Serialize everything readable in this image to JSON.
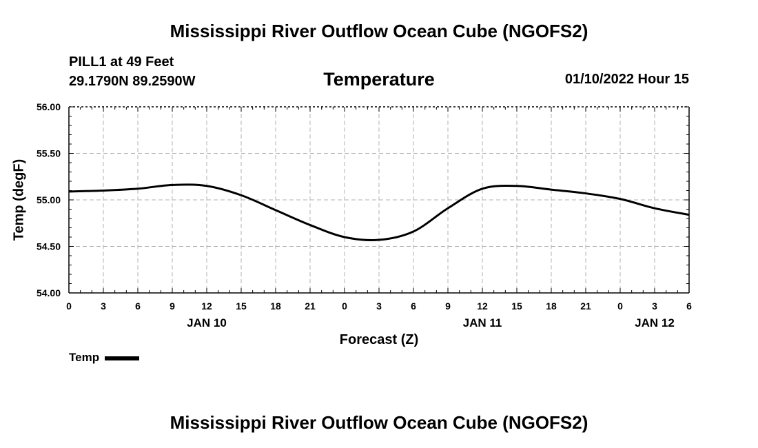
{
  "header": {
    "main_title": "Mississippi River Outflow Ocean Cube (NGOFS2)",
    "station_line1": "PILL1 at 49 Feet",
    "station_line2": "29.1790N  89.2590W",
    "datetime": "01/10/2022 Hour 15"
  },
  "footer": {
    "next_title": "Mississippi River Outflow Ocean Cube (NGOFS2)"
  },
  "chart_data": {
    "type": "line",
    "title": "Temperature",
    "xlabel": "Forecast (Z)",
    "ylabel": "Temp (degF)",
    "ylim": [
      54.0,
      56.0
    ],
    "xlim_hours": [
      0,
      54
    ],
    "y_ticks": [
      "54.00",
      "54.50",
      "55.00",
      "55.50",
      "56.00"
    ],
    "y_tick_values": [
      54.0,
      54.5,
      55.0,
      55.5,
      56.0
    ],
    "x_ticks": [
      "0",
      "3",
      "6",
      "9",
      "12",
      "15",
      "18",
      "21",
      "0",
      "3",
      "6",
      "9",
      "12",
      "15",
      "18",
      "21",
      "0",
      "3",
      "6"
    ],
    "day_labels": [
      {
        "label": "JAN 10",
        "hour": 12
      },
      {
        "label": "JAN 11",
        "hour": 36
      },
      {
        "label": "JAN 12",
        "hour": 51
      }
    ],
    "grid": true,
    "series": [
      {
        "name": "Temp",
        "color": "#000000",
        "x": [
          0,
          3,
          6,
          9,
          12,
          15,
          18,
          21,
          24,
          27,
          30,
          33,
          36,
          39,
          42,
          45,
          48,
          51,
          54
        ],
        "values": [
          55.09,
          55.1,
          55.12,
          55.16,
          55.15,
          55.05,
          54.89,
          54.73,
          54.6,
          54.57,
          54.66,
          54.91,
          55.12,
          55.15,
          55.11,
          55.07,
          55.01,
          54.91,
          54.84
        ]
      }
    ],
    "legend": {
      "label": "Temp",
      "position": "bottom-left"
    }
  }
}
